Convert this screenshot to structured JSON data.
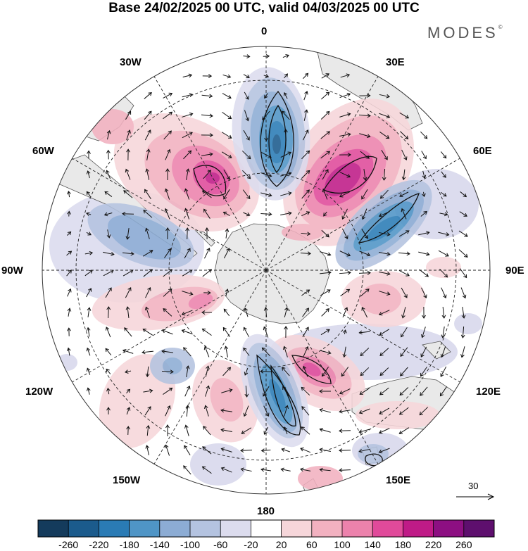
{
  "title": "Base 24/02/2025 00 UTC, valid 04/03/2025 00 UTC",
  "brand": "MODES",
  "brand_mark": "©",
  "longitude_labels": {
    "top": "0",
    "nw": "30W",
    "ne": "30E",
    "wnw": "60W",
    "ene": "60E",
    "west": "90W",
    "east": "90E",
    "wsw": "120W",
    "esw": "120E",
    "sw": "150W",
    "se": "150E",
    "bottom": "180"
  },
  "colorbar": {
    "ticks": [
      "-260",
      "-220",
      "-180",
      "-140",
      "-100",
      "-60",
      "-20",
      "20",
      "60",
      "100",
      "140",
      "180",
      "220",
      "260"
    ],
    "colors": [
      "#143b5c",
      "#1b5b8c",
      "#2a7bb5",
      "#4f95c6",
      "#8cacd4",
      "#b4c3e0",
      "#dcdcee",
      "#ffffff",
      "#f6d6da",
      "#f2b1c0",
      "#ec82ac",
      "#e04a9a",
      "#bf1b87",
      "#8d0f82",
      "#5e0f6e"
    ]
  },
  "reference_vector_label": "30",
  "colors": {
    "land": "#e9e9e9",
    "coast": "#555555"
  }
}
